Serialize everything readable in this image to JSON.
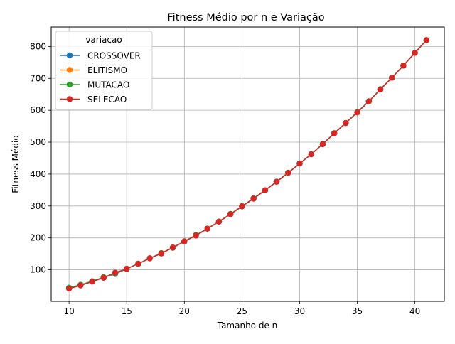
{
  "chart_data": {
    "type": "line",
    "title": "Fitness Médio por n e Variação",
    "xlabel": "Tamanho de n",
    "ylabel": "Fitness Médio",
    "xlim": [
      8.45,
      42.55
    ],
    "ylim": [
      1,
      861
    ],
    "xticks": [
      10,
      15,
      20,
      25,
      30,
      35,
      40
    ],
    "yticks": [
      100,
      200,
      300,
      400,
      500,
      600,
      700,
      800
    ],
    "grid": true,
    "legend": {
      "title": "variacao",
      "position": "top-left"
    },
    "x": [
      10,
      11,
      12,
      13,
      14,
      15,
      16,
      17,
      18,
      19,
      20,
      21,
      22,
      23,
      24,
      25,
      26,
      27,
      28,
      29,
      30,
      31,
      32,
      33,
      34,
      35,
      36,
      37,
      38,
      39,
      40,
      41
    ],
    "series": [
      {
        "name": "CROSSOVER",
        "color": "#1f77b4",
        "values": [
          43,
          53,
          64,
          76,
          87,
          103,
          119,
          136,
          152,
          169,
          189,
          208,
          229,
          251,
          275,
          299,
          323,
          349,
          376,
          404,
          433,
          462,
          494,
          528,
          560,
          594,
          628,
          666,
          702,
          740,
          780,
          820
        ]
      },
      {
        "name": "ELITISMO",
        "color": "#ff7f0e",
        "values": [
          42,
          52,
          63,
          76,
          89,
          103,
          119,
          136,
          152,
          170,
          189,
          208,
          229,
          251,
          275,
          299,
          324,
          349,
          376,
          404,
          433,
          462,
          494,
          528,
          560,
          594,
          628,
          666,
          702,
          740,
          780,
          820
        ]
      },
      {
        "name": "MUTACAO",
        "color": "#2ca02c",
        "values": [
          44,
          53,
          64,
          77,
          89,
          103,
          119,
          136,
          152,
          169,
          189,
          209,
          229,
          251,
          275,
          299,
          324,
          349,
          376,
          404,
          433,
          462,
          494,
          528,
          560,
          594,
          628,
          666,
          702,
          740,
          780,
          820
        ]
      },
      {
        "name": "SELECAO",
        "color": "#d62728",
        "values": [
          41,
          51,
          63,
          75,
          91,
          103,
          119,
          136,
          151,
          170,
          189,
          207,
          229,
          251,
          274,
          299,
          323,
          349,
          376,
          404,
          433,
          462,
          494,
          527,
          560,
          593,
          628,
          665,
          702,
          740,
          780,
          820
        ]
      }
    ]
  }
}
